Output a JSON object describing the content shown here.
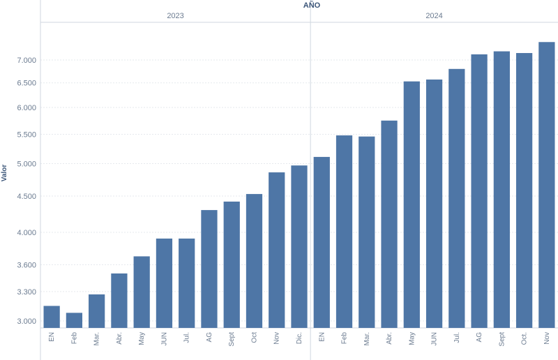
{
  "chart_data": {
    "type": "bar",
    "header_title": "AÑO",
    "year_groups": [
      {
        "label": "2023",
        "count": 12
      },
      {
        "label": "2024",
        "count": 11
      }
    ],
    "categories": [
      "EN",
      "Feb",
      "Mar.",
      "Abr.",
      "May",
      "JUN",
      "Jul.",
      "AG",
      "Sept",
      "Oct",
      "Nov",
      "Dic.",
      "EN",
      "Feb",
      "Mar.",
      "Abr.",
      "May",
      "JUN",
      "Jul.",
      "AG",
      "Sept",
      "Oct.",
      "Nov"
    ],
    "values": [
      3150,
      3080,
      3270,
      3500,
      3700,
      3920,
      3920,
      4300,
      4420,
      4530,
      4860,
      4970,
      5110,
      5480,
      5460,
      5750,
      6530,
      6570,
      6800,
      7130,
      7200,
      7160,
      7420
    ],
    "ylabel": "Valor",
    "xlabel": "",
    "yticks": [
      3000,
      3300,
      3600,
      4000,
      4500,
      5000,
      5500,
      6000,
      6500,
      7000
    ],
    "ytick_labels": [
      "3.000",
      "3.300",
      "3.600",
      "4.000",
      "4.500",
      "5.000",
      "5.500",
      "6.000",
      "6.500",
      "7.000"
    ],
    "ylim": [
      2900,
      7500
    ],
    "y_scale": "log",
    "grid": true,
    "bar_color": "#4e76a6",
    "axis_text_color": "#6b7b90",
    "header_text_color": "#3b5578"
  }
}
